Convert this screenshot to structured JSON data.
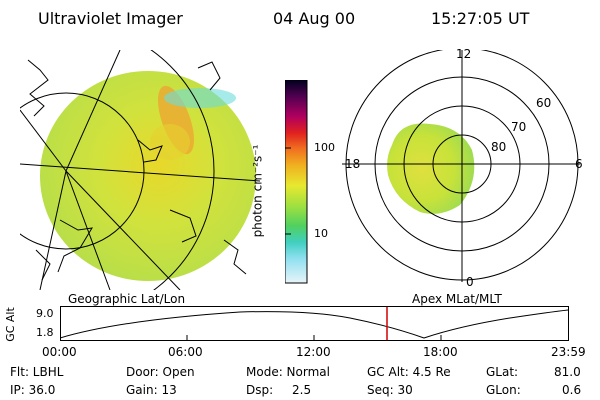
{
  "header": {
    "title": "Ultraviolet Imager",
    "date": "04 Aug 00",
    "time": "15:27:05 UT"
  },
  "colorbar": {
    "unit_label": "photon cm⁻²s⁻¹",
    "ticks": [
      "100",
      "10"
    ],
    "scale": "log"
  },
  "polar_plot": {
    "mlt_labels": [
      "12",
      "18",
      "6",
      "0"
    ],
    "mlat_labels": [
      "60",
      "70",
      "80"
    ]
  },
  "map_label": "Geographic Lat/Lon",
  "polar_label": "Apex MLat/MLT",
  "altitude_panel": {
    "axis_label": "GC Alt",
    "y_ticks": [
      "9.0",
      "1.8"
    ],
    "x_ticks": [
      "00:00",
      "06:00",
      "12:00",
      "18:00",
      "23:59"
    ],
    "current_time_marker": "15:27"
  },
  "info": {
    "filter": "Flt: LBHL",
    "ip": "IP: 36.0",
    "door": "Door: Open",
    "gain": "Gain: 13",
    "mode": "Mode: Normal",
    "dsp_label": "Dsp:",
    "dsp_value": "2.5",
    "gc_alt": "GC Alt: 4.5 Re",
    "seq": "Seq: 30",
    "glat_label": "GLat:",
    "glat_value": "81.0",
    "glon_label": "GLon:",
    "glon_value": "0.6"
  },
  "colors": {
    "background": "#ffffff",
    "marker": "#d00000",
    "image_base": "#c8e23a"
  }
}
